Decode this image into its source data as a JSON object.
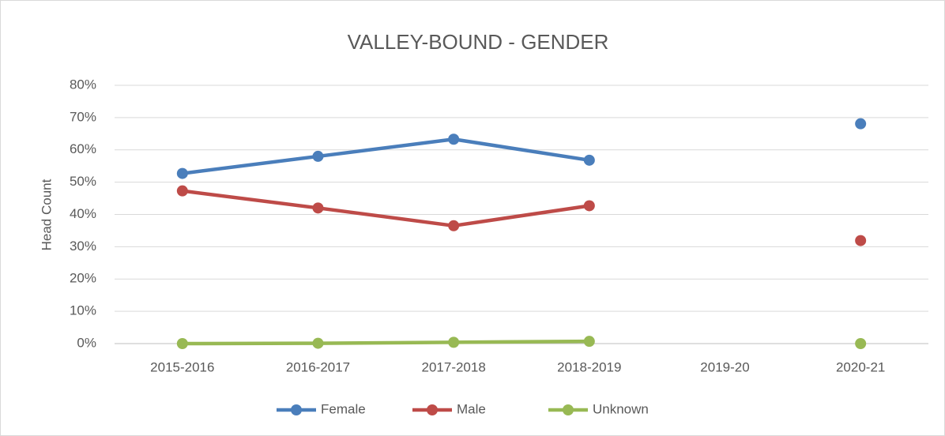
{
  "chart_data": {
    "type": "line",
    "title": "VALLEY-BOUND - GENDER",
    "y_label": "Head Count",
    "categories": [
      "2015-2016",
      "2016-2017",
      "2017-2018",
      "2018-2019",
      "2019-20",
      "2020-21"
    ],
    "series": [
      {
        "name": "Female",
        "color": "#4a7ebb",
        "values": [
          52.7,
          58,
          63.3,
          56.8,
          null,
          68.1
        ]
      },
      {
        "name": "Male",
        "color": "#be4b48",
        "values": [
          47.3,
          42,
          36.5,
          42.7,
          null,
          31.9
        ]
      },
      {
        "name": "Unknown",
        "color": "#98b954",
        "values": [
          0,
          0.1,
          0.4,
          0.7,
          null,
          0
        ]
      }
    ],
    "ylim": [
      0,
      80
    ],
    "yticks": [
      {
        "value": 0,
        "label": "0%"
      },
      {
        "value": 10,
        "label": "10%"
      },
      {
        "value": 20,
        "label": "20%"
      },
      {
        "value": 30,
        "label": "30%"
      },
      {
        "value": 40,
        "label": "40%"
      },
      {
        "value": 50,
        "label": "50%"
      },
      {
        "value": 60,
        "label": "60%"
      },
      {
        "value": 70,
        "label": "70%"
      },
      {
        "value": 80,
        "label": "80%"
      }
    ],
    "grid": true,
    "legend": "bottom"
  }
}
